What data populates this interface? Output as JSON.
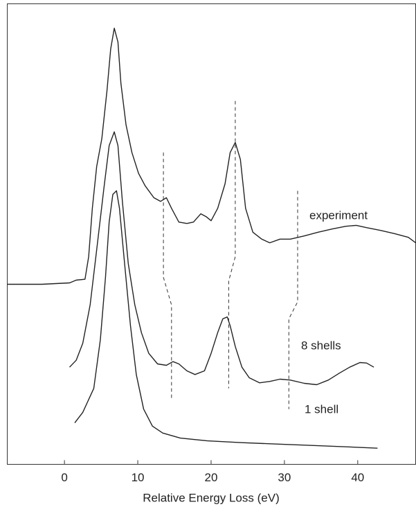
{
  "chart_data": {
    "type": "line",
    "xlabel": "Relative Energy Loss (eV)",
    "xlim": [
      -7.8,
      47.9
    ],
    "xticks": [
      0,
      10,
      20,
      30,
      40
    ],
    "ylim": [
      0,
      100
    ],
    "series": [
      {
        "name": "experiment",
        "color": "#222222",
        "x": [
          -7.8,
          -3.1,
          0.7,
          1.6,
          2.8,
          3.3,
          3.8,
          4.4,
          5.1,
          5.8,
          6.3,
          6.8,
          7.3,
          7.7,
          8.4,
          9.2,
          10.1,
          11.0,
          12.2,
          13.1,
          13.9,
          14.6,
          15.6,
          16.7,
          17.6,
          18.6,
          19.3,
          20.0,
          20.9,
          21.9,
          22.6,
          23.3,
          24.0,
          24.7,
          25.7,
          26.9,
          28.0,
          29.4,
          30.8,
          32.7,
          34.6,
          36.5,
          38.4,
          39.8,
          41.2,
          43.1,
          45.0,
          46.9,
          47.9
        ],
        "values": [
          39.1,
          39.1,
          39.4,
          40.0,
          40.2,
          45.1,
          55.6,
          64.7,
          70.7,
          81.2,
          90.2,
          94.7,
          91.7,
          82.7,
          73.7,
          67.7,
          63.2,
          60.5,
          57.9,
          57.1,
          57.9,
          55.6,
          52.6,
          52.3,
          52.6,
          54.4,
          53.8,
          52.9,
          55.6,
          60.9,
          67.7,
          69.9,
          66.2,
          55.6,
          50.4,
          48.9,
          48.1,
          48.9,
          48.9,
          49.6,
          50.4,
          51.1,
          51.7,
          51.9,
          51.4,
          50.8,
          50.1,
          49.3,
          48.1
        ]
      },
      {
        "name": "8 shells",
        "color": "#222222",
        "x": [
          0.7,
          1.6,
          2.5,
          3.5,
          4.4,
          5.4,
          6.1,
          6.8,
          7.3,
          7.9,
          8.7,
          9.6,
          10.5,
          11.5,
          12.7,
          13.9,
          14.8,
          15.6,
          16.7,
          17.8,
          19.1,
          20.0,
          20.9,
          21.6,
          22.2,
          22.6,
          23.3,
          24.2,
          25.2,
          26.6,
          28.0,
          29.4,
          30.8,
          32.7,
          34.4,
          36.0,
          37.5,
          38.9,
          40.3,
          41.2,
          42.2
        ],
        "values": [
          21.1,
          22.6,
          26.3,
          34.6,
          46.6,
          60.2,
          69.2,
          72.2,
          69.2,
          57.1,
          43.6,
          34.6,
          28.6,
          24.1,
          21.8,
          21.5,
          22.3,
          21.8,
          20.3,
          19.5,
          20.3,
          24.1,
          28.6,
          31.6,
          32.0,
          30.1,
          25.6,
          21.1,
          18.8,
          17.7,
          18.0,
          18.5,
          18.3,
          17.6,
          17.3,
          18.3,
          19.8,
          21.1,
          22.1,
          22.0,
          21.1
        ]
      },
      {
        "name": "1 shell",
        "color": "#222222",
        "x": [
          1.4,
          2.5,
          4.0,
          4.9,
          5.6,
          6.1,
          6.6,
          7.1,
          7.5,
          8.2,
          9.0,
          9.8,
          10.8,
          12.0,
          13.4,
          15.8,
          19.5,
          24.2,
          28.9,
          33.7,
          38.4,
          42.7
        ],
        "values": [
          9.0,
          11.3,
          16.5,
          27.1,
          40.6,
          52.6,
          58.6,
          59.4,
          55.6,
          43.6,
          30.1,
          19.5,
          12.0,
          8.3,
          6.8,
          5.7,
          5.1,
          4.7,
          4.4,
          4.1,
          3.8,
          3.5
        ]
      }
    ],
    "guides": [
      {
        "x": [
          13.5,
          13.5,
          14.6,
          14.6
        ],
        "values": [
          67.7,
          40.6,
          34.6,
          14.3
        ]
      },
      {
        "x": [
          23.3,
          23.3,
          22.4,
          22.4
        ],
        "values": [
          78.9,
          45.1,
          39.8,
          16.5
        ]
      },
      {
        "x": [
          31.8,
          31.8,
          30.6,
          30.6
        ],
        "values": [
          59.4,
          35.3,
          31.6,
          12.0
        ]
      }
    ]
  }
}
